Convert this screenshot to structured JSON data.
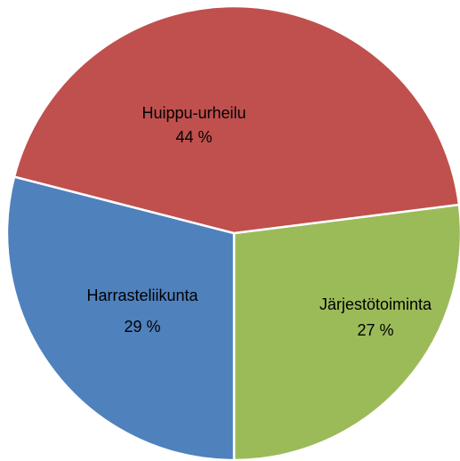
{
  "chart_data": {
    "type": "pie",
    "categories": [
      "Järjestötoiminta",
      "Harrasteliikunta",
      "Huippu-urheilu"
    ],
    "values": [
      27,
      29,
      44
    ],
    "value_labels": [
      "27 %",
      "29 %",
      "44 %"
    ],
    "colors": [
      "#9bbb59",
      "#4f81bd",
      "#c0504d"
    ]
  }
}
